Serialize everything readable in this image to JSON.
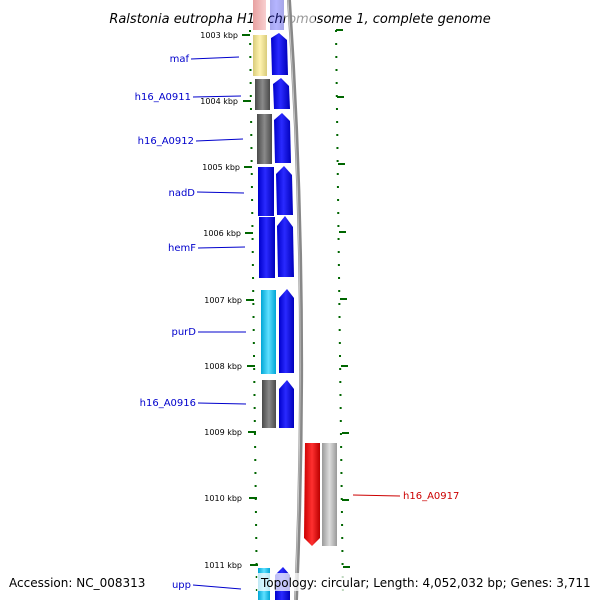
{
  "title": "Ralstonia eutropha H16 chromosome 1, complete genome",
  "accession_text": "Accession: NC_008313",
  "summary_text": "Topology: circular; Length: 4,052,032 bp; Genes: 3,711",
  "kbp_ticks": [
    {
      "label": "1003 kbp"
    },
    {
      "label": "1004 kbp"
    },
    {
      "label": "1005 kbp"
    },
    {
      "label": "1006 kbp"
    },
    {
      "label": "1007 kbp"
    },
    {
      "label": "1008 kbp"
    },
    {
      "label": "1009 kbp"
    },
    {
      "label": "1010 kbp"
    },
    {
      "label": "1011 kbp"
    }
  ],
  "gene_labels": [
    {
      "name": "maf",
      "color": "#0000cc"
    },
    {
      "name": "h16_A0911",
      "color": "#0000cc"
    },
    {
      "name": "h16_A0912",
      "color": "#0000cc"
    },
    {
      "name": "nadD",
      "color": "#0000cc"
    },
    {
      "name": "hemF",
      "color": "#0000cc"
    },
    {
      "name": "purD",
      "color": "#0000cc"
    },
    {
      "name": "h16_A0916",
      "color": "#0000cc"
    },
    {
      "name": "h16_A0917",
      "color": "#cc0000"
    },
    {
      "name": "upp",
      "color": "#0000cc"
    }
  ],
  "colors": {
    "forward_strand": "#0000ee",
    "reverse_strand": "#ee0000",
    "tick_green": "#006600",
    "backbone": "#888888"
  }
}
